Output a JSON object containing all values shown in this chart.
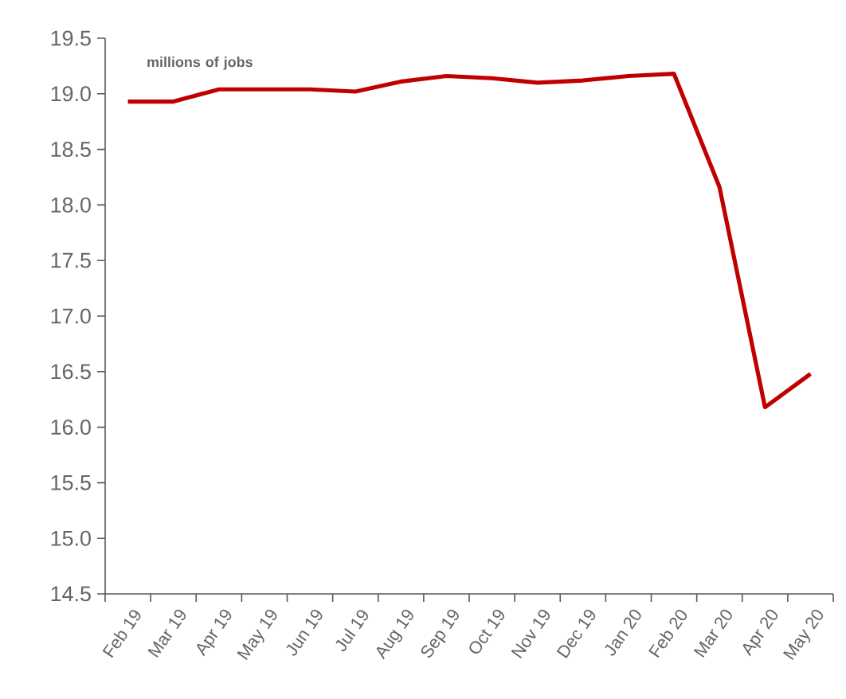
{
  "chart_data": {
    "type": "line",
    "ylabel": "millions of jobs",
    "categories": [
      "Feb 19",
      "Mar 19",
      "Apr 19",
      "May 19",
      "Jun 19",
      "Jul 19",
      "Aug 19",
      "Sep 19",
      "Oct 19",
      "Nov 19",
      "Dec 19",
      "Jan 20",
      "Feb 20",
      "Mar 20",
      "Apr 20",
      "May 20"
    ],
    "series": [
      {
        "color": "#c00000",
        "values": [
          18.93,
          18.93,
          19.04,
          19.04,
          19.04,
          19.02,
          19.11,
          19.16,
          19.14,
          19.1,
          19.12,
          19.16,
          19.18,
          18.16,
          16.18,
          16.48
        ]
      }
    ],
    "ylim": [
      14.5,
      19.5
    ],
    "yticks": [
      {
        "value": 14.5,
        "label": "14.5"
      },
      {
        "value": 15,
        "label": "15.0"
      },
      {
        "value": 15.5,
        "label": "15.5"
      },
      {
        "value": 16,
        "label": "16.0"
      },
      {
        "value": 16.5,
        "label": "16.5"
      },
      {
        "value": 17,
        "label": "17.0"
      },
      {
        "value": 17.5,
        "label": "17.5"
      },
      {
        "value": 18,
        "label": "18.0"
      },
      {
        "value": 18.5,
        "label": "18.5"
      },
      {
        "value": 19,
        "label": "19.0"
      },
      {
        "value": 19.5,
        "label": "19.5"
      }
    ],
    "grid": false,
    "marker": "none",
    "line_style": "solid"
  }
}
